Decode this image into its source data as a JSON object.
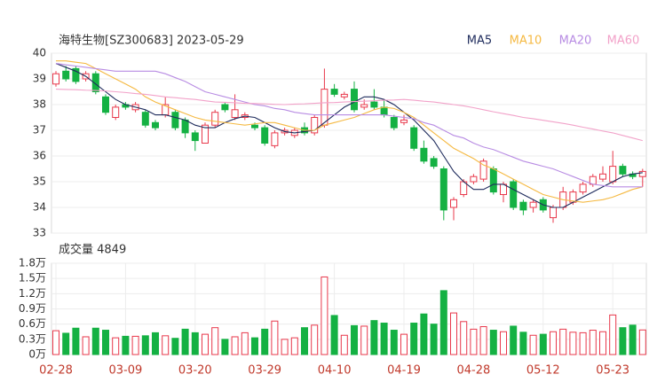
{
  "chart_data": [
    {
      "type": "candlestick",
      "title": "海特生物[SZ300683] 2023-05-29",
      "categories": [
        "02-28",
        null,
        null,
        null,
        null,
        null,
        null,
        "03-09",
        null,
        null,
        null,
        null,
        null,
        null,
        "03-20",
        null,
        null,
        null,
        null,
        null,
        null,
        "03-29",
        null,
        null,
        null,
        null,
        null,
        null,
        "04-10",
        null,
        null,
        null,
        null,
        null,
        null,
        "04-19",
        null,
        null,
        null,
        null,
        null,
        null,
        "04-28",
        null,
        null,
        null,
        null,
        null,
        null,
        "05-12",
        null,
        null,
        null,
        null,
        null,
        null,
        "05-23",
        null,
        null,
        null
      ],
      "open": [
        38.8,
        39.3,
        39.4,
        39.0,
        39.2,
        38.3,
        37.5,
        38.0,
        37.8,
        37.7,
        37.3,
        37.6,
        37.7,
        37.4,
        36.9,
        36.5,
        37.2,
        38.0,
        37.5,
        37.5,
        37.2,
        37.1,
        36.4,
        36.9,
        36.8,
        37.1,
        36.9,
        37.2,
        38.6,
        38.3,
        38.6,
        37.9,
        38.1,
        37.9,
        37.5,
        37.3,
        37.1,
        36.3,
        35.9,
        35.5,
        34.0,
        34.5,
        35.0,
        35.1,
        35.5,
        34.5,
        35.0,
        34.2,
        34.0,
        34.3,
        33.6,
        34.0,
        34.2,
        34.6,
        34.9,
        35.1,
        35.0,
        35.6,
        35.3,
        35.2
      ],
      "high": [
        39.3,
        39.5,
        39.5,
        39.3,
        39.3,
        38.4,
        38.0,
        38.1,
        38.1,
        37.8,
        37.4,
        38.3,
        37.8,
        37.5,
        37.0,
        37.3,
        37.8,
        38.1,
        38.4,
        37.7,
        37.3,
        37.2,
        37.0,
        37.1,
        37.1,
        37.3,
        37.6,
        39.4,
        38.8,
        38.5,
        38.9,
        38.2,
        38.6,
        38.2,
        37.6,
        37.6,
        37.2,
        36.6,
        36.0,
        35.6,
        34.4,
        35.1,
        35.3,
        35.9,
        35.6,
        35.0,
        35.1,
        34.3,
        34.3,
        34.4,
        34.1,
        34.8,
        34.7,
        35.0,
        35.3,
        35.6,
        36.2,
        35.7,
        35.4,
        35.5
      ],
      "low": [
        38.7,
        38.9,
        38.8,
        38.9,
        38.4,
        37.6,
        37.4,
        37.8,
        37.7,
        37.1,
        37.0,
        37.5,
        37.0,
        36.7,
        36.2,
        36.5,
        37.1,
        37.7,
        37.4,
        37.4,
        37.0,
        36.4,
        36.3,
        36.8,
        36.7,
        36.8,
        36.8,
        37.1,
        38.3,
        38.2,
        37.7,
        37.8,
        37.8,
        37.5,
        37.0,
        37.2,
        36.2,
        35.7,
        35.5,
        33.5,
        33.5,
        34.4,
        34.9,
        35.0,
        34.5,
        34.2,
        33.9,
        33.7,
        33.8,
        33.8,
        33.4,
        33.9,
        34.1,
        34.5,
        34.8,
        35.0,
        34.9,
        35.2,
        35.1,
        34.8
      ],
      "close": [
        39.2,
        39.0,
        38.9,
        39.2,
        38.5,
        37.7,
        37.9,
        37.9,
        38.0,
        37.2,
        37.1,
        38.0,
        37.1,
        36.9,
        36.6,
        37.2,
        37.7,
        37.8,
        37.8,
        37.6,
        37.1,
        36.5,
        36.9,
        37.0,
        37.0,
        36.9,
        37.5,
        38.6,
        38.4,
        38.4,
        37.8,
        38.0,
        37.9,
        37.6,
        37.1,
        37.4,
        36.3,
        35.8,
        35.6,
        33.9,
        34.3,
        35.0,
        35.2,
        35.8,
        34.6,
        34.9,
        34.0,
        33.9,
        34.2,
        33.9,
        34.0,
        34.6,
        34.6,
        34.9,
        35.2,
        35.3,
        35.6,
        35.3,
        35.2,
        35.4
      ],
      "up_color": "#e8384b",
      "down_color": "#14b143",
      "series": [
        {
          "name": "MA5",
          "color": "#1e2b5c",
          "values": [
            39.6,
            39.45,
            39.3,
            39.1,
            38.8,
            38.5,
            38.2,
            38.0,
            37.9,
            37.8,
            37.6,
            37.6,
            37.5,
            37.4,
            37.2,
            37.1,
            37.1,
            37.3,
            37.45,
            37.55,
            37.5,
            37.3,
            37.1,
            36.95,
            36.9,
            36.95,
            37.0,
            37.3,
            37.6,
            37.9,
            38.1,
            38.3,
            38.3,
            38.2,
            38.0,
            37.7,
            37.4,
            37.0,
            36.6,
            36.0,
            35.4,
            35.0,
            34.7,
            34.7,
            34.9,
            34.9,
            34.7,
            34.5,
            34.3,
            34.1,
            34.0,
            34.0,
            34.2,
            34.4,
            34.6,
            34.8,
            35.0,
            35.2,
            35.3,
            35.35
          ]
        },
        {
          "name": "MA10",
          "color": "#f5b942",
          "values": [
            39.7,
            39.7,
            39.65,
            39.6,
            39.4,
            39.2,
            39.0,
            38.8,
            38.6,
            38.3,
            38.1,
            37.95,
            37.8,
            37.65,
            37.5,
            37.4,
            37.35,
            37.3,
            37.25,
            37.2,
            37.25,
            37.3,
            37.3,
            37.2,
            37.1,
            37.0,
            37.0,
            37.2,
            37.3,
            37.4,
            37.5,
            37.65,
            37.8,
            37.9,
            37.85,
            37.7,
            37.5,
            37.2,
            36.9,
            36.6,
            36.3,
            36.1,
            35.9,
            35.65,
            35.5,
            35.3,
            35.1,
            34.9,
            34.7,
            34.5,
            34.4,
            34.3,
            34.25,
            34.2,
            34.25,
            34.3,
            34.4,
            34.55,
            34.7,
            34.8
          ]
        },
        {
          "name": "MA20",
          "color": "#b88ce3",
          "values": [
            39.6,
            39.55,
            39.5,
            39.45,
            39.4,
            39.35,
            39.3,
            39.3,
            39.3,
            39.3,
            39.3,
            39.2,
            39.05,
            38.9,
            38.7,
            38.5,
            38.4,
            38.3,
            38.2,
            38.1,
            38.0,
            37.95,
            37.85,
            37.8,
            37.7,
            37.65,
            37.6,
            37.6,
            37.6,
            37.6,
            37.6,
            37.6,
            37.6,
            37.6,
            37.55,
            37.5,
            37.45,
            37.3,
            37.2,
            37.0,
            36.8,
            36.7,
            36.5,
            36.35,
            36.25,
            36.1,
            35.95,
            35.8,
            35.7,
            35.6,
            35.5,
            35.35,
            35.2,
            35.05,
            34.9,
            34.85,
            34.8,
            34.8,
            34.8,
            34.8
          ]
        },
        {
          "name": "MA60",
          "color": "#f2a2c9",
          "values": [
            38.6,
            38.59,
            38.58,
            38.56,
            38.55,
            38.53,
            38.5,
            38.47,
            38.43,
            38.4,
            38.35,
            38.3,
            38.27,
            38.23,
            38.2,
            38.15,
            38.1,
            38.09,
            38.07,
            38.05,
            38.04,
            38.03,
            38.01,
            38.0,
            38.02,
            38.03,
            38.05,
            38.07,
            38.08,
            38.1,
            38.12,
            38.13,
            38.15,
            38.17,
            38.18,
            38.2,
            38.17,
            38.13,
            38.1,
            38.05,
            38.0,
            37.95,
            37.88,
            37.8,
            37.72,
            37.65,
            37.58,
            37.5,
            37.45,
            37.39,
            37.33,
            37.27,
            37.2,
            37.12,
            37.05,
            36.97,
            36.9,
            36.8,
            36.7,
            36.6
          ]
        }
      ],
      "ylim": [
        33,
        40
      ],
      "yticks": [
        33,
        34,
        35,
        36,
        37,
        38,
        39,
        40
      ],
      "grid": true
    },
    {
      "type": "bar",
      "title": "成交量 4849",
      "values": [
        0.47,
        0.42,
        0.52,
        0.35,
        0.52,
        0.48,
        0.33,
        0.36,
        0.36,
        0.37,
        0.43,
        0.37,
        0.32,
        0.5,
        0.43,
        0.4,
        0.53,
        0.3,
        0.35,
        0.43,
        0.33,
        0.5,
        0.66,
        0.3,
        0.33,
        0.53,
        0.58,
        1.53,
        0.77,
        0.38,
        0.57,
        0.56,
        0.67,
        0.62,
        0.48,
        0.4,
        0.62,
        0.8,
        0.6,
        1.26,
        0.82,
        0.65,
        0.5,
        0.55,
        0.48,
        0.45,
        0.56,
        0.44,
        0.38,
        0.4,
        0.45,
        0.5,
        0.44,
        0.43,
        0.48,
        0.45,
        0.78,
        0.53,
        0.58,
        0.4849
      ],
      "ylim": [
        0,
        1.8
      ],
      "yticks": [
        {
          "value": 0,
          "label": "0万"
        },
        {
          "value": 0.3,
          "label": "0.3万"
        },
        {
          "value": 0.6,
          "label": "0.6万"
        },
        {
          "value": 0.9,
          "label": "0.9万"
        },
        {
          "value": 1.2,
          "label": "1.2万"
        },
        {
          "value": 1.5,
          "label": "1.5万"
        },
        {
          "value": 1.8,
          "label": "1.8万"
        }
      ],
      "grid": true
    }
  ]
}
